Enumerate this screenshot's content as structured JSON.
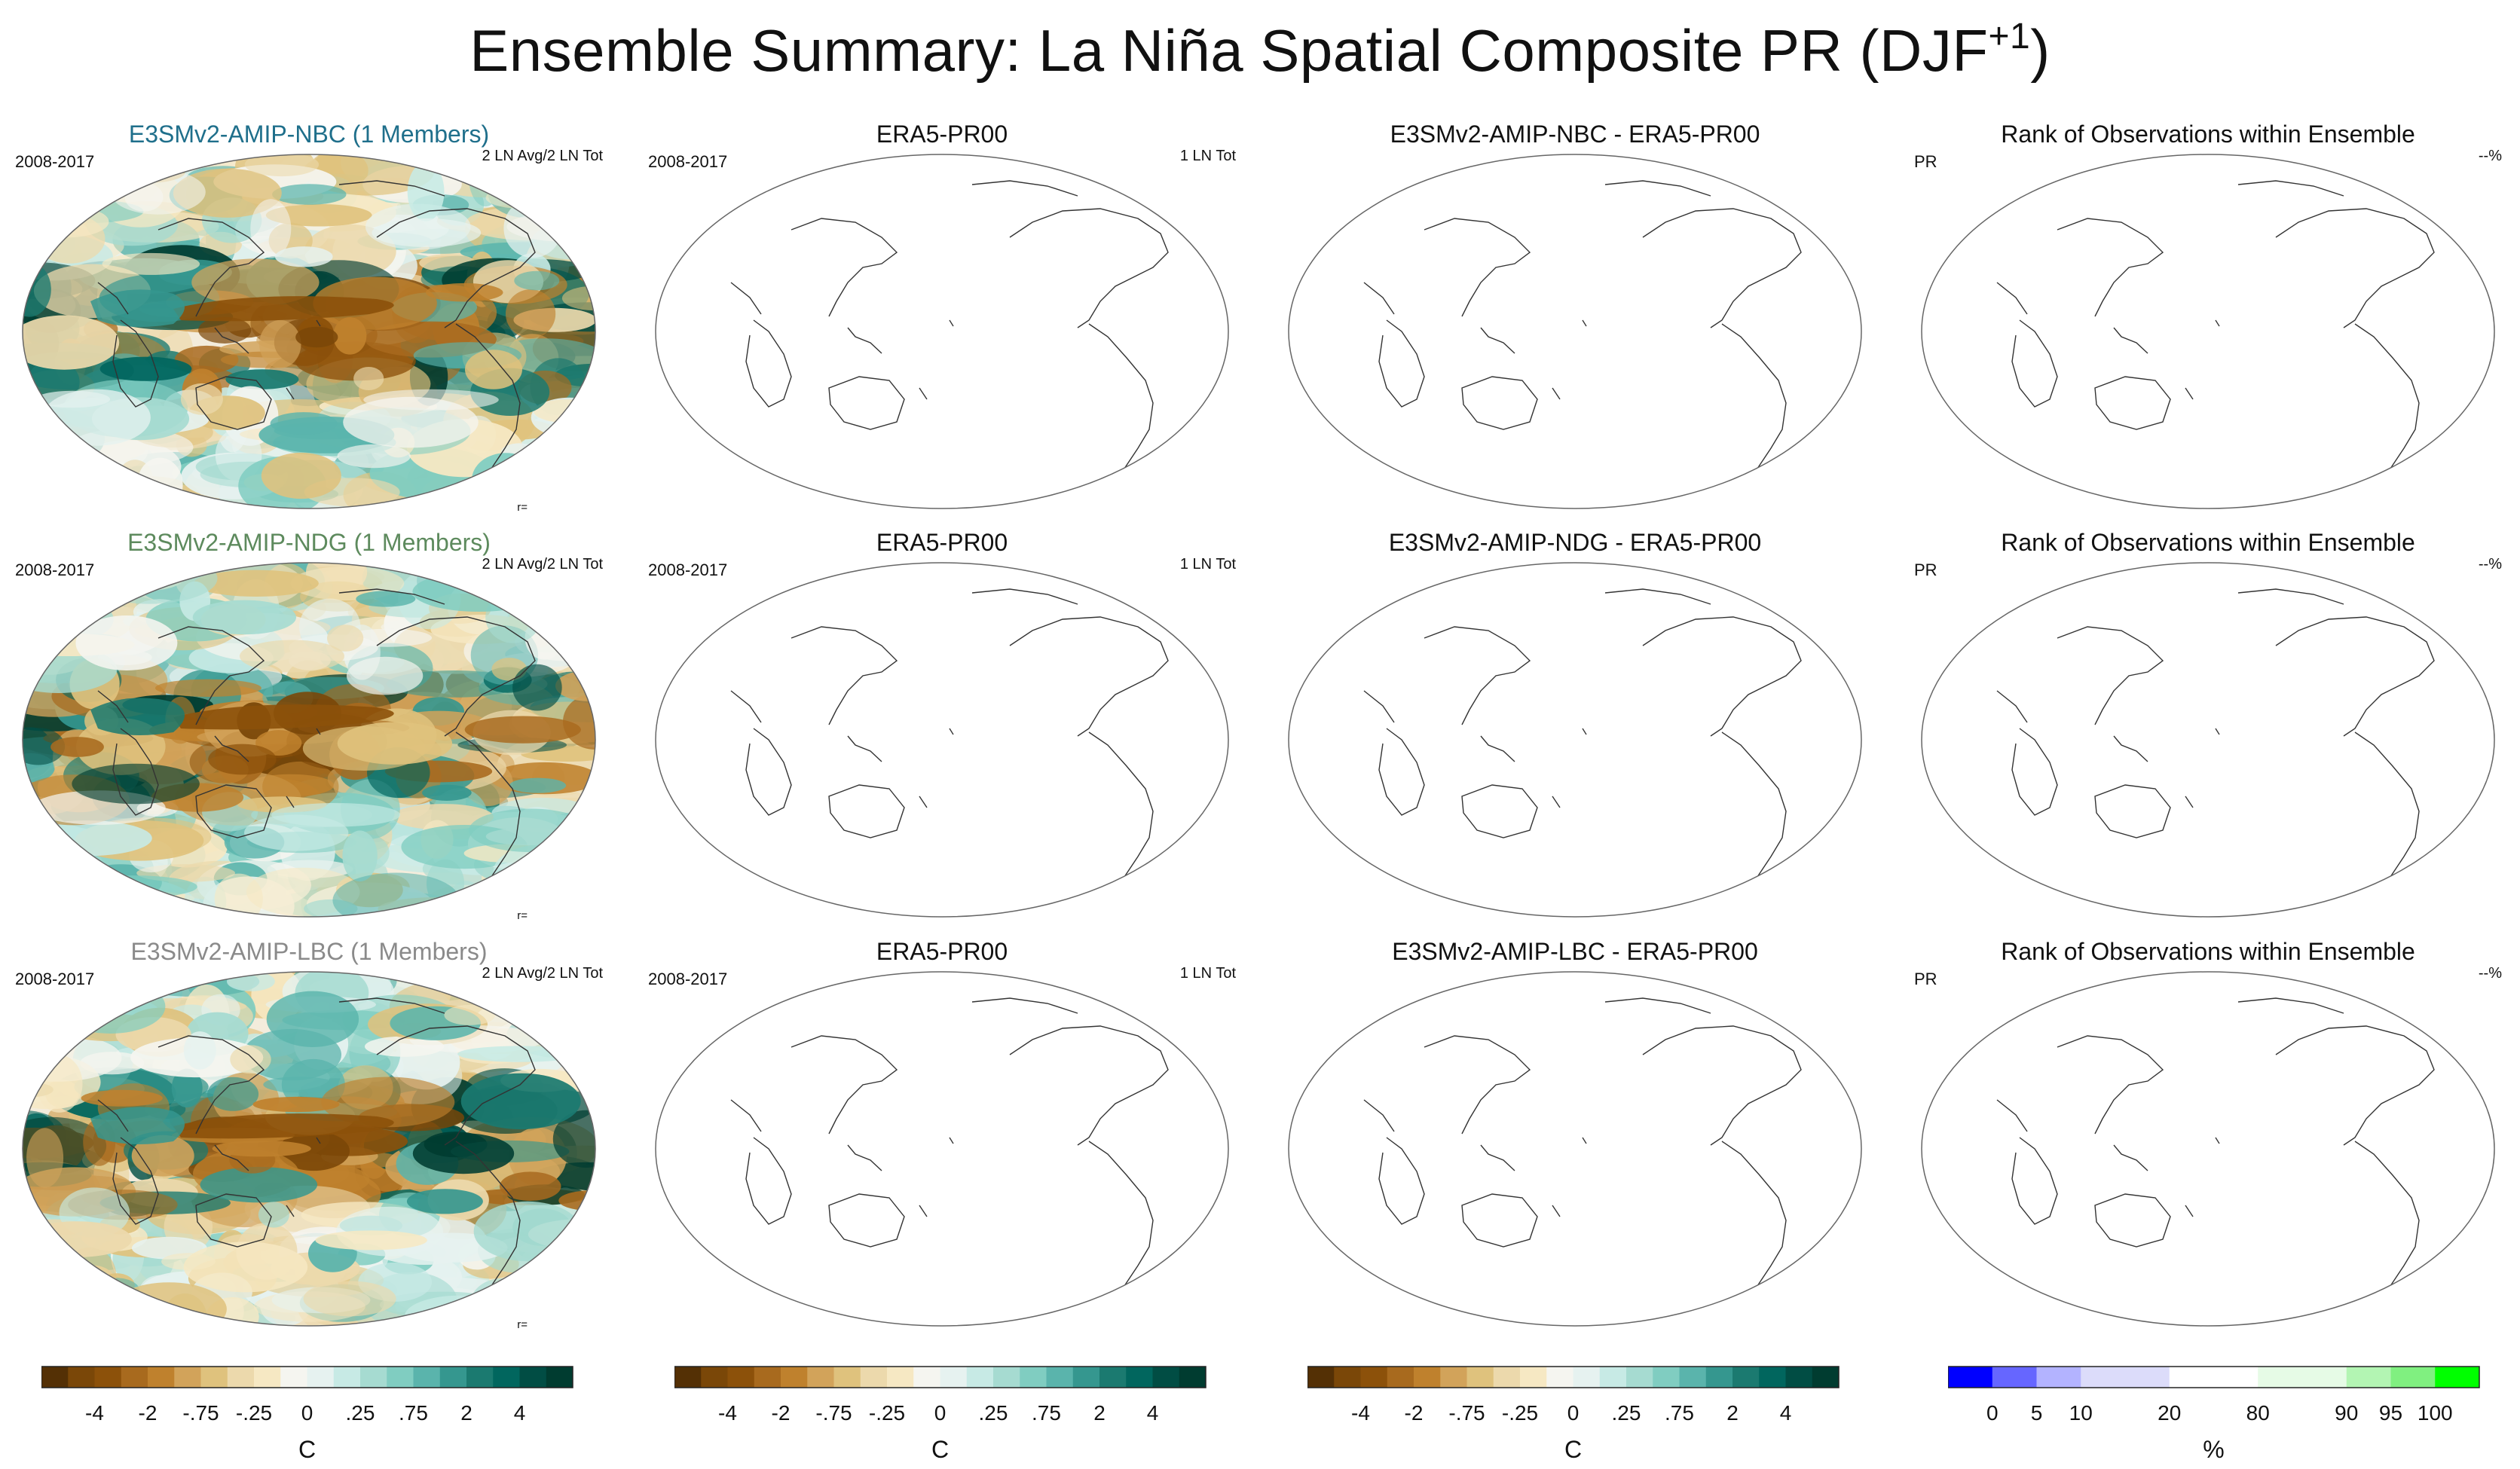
{
  "figure": {
    "title_main": "Ensemble Summary: La Niña Spatial Composite PR (DJF",
    "title_sup": "+1",
    "title_tail": ")"
  },
  "rows": [
    {
      "model": {
        "title": "E3SMv2-AMIP-NBC (1 Members)",
        "title_color": "#1f6f8b",
        "period": "2008-2017",
        "count": "2 LN Avg/2 LN Tot",
        "corr": "r="
      },
      "obs": {
        "title": "ERA5-PR00",
        "period": "2008-2017",
        "count": "1 LN Tot"
      },
      "diff": {
        "title": "E3SMv2-AMIP-NBC - ERA5-PR00"
      },
      "rank": {
        "title": "Rank of Observations within Ensemble",
        "var": "PR",
        "pct": "--%"
      }
    },
    {
      "model": {
        "title": "E3SMv2-AMIP-NDG (1 Members)",
        "title_color": "#5d8a5d",
        "period": "2008-2017",
        "count": "2 LN Avg/2 LN Tot",
        "corr": "r="
      },
      "obs": {
        "title": "ERA5-PR00",
        "period": "2008-2017",
        "count": "1 LN Tot"
      },
      "diff": {
        "title": "E3SMv2-AMIP-NDG - ERA5-PR00"
      },
      "rank": {
        "title": "Rank of Observations within Ensemble",
        "var": "PR",
        "pct": "--%"
      }
    },
    {
      "model": {
        "title": "E3SMv2-AMIP-LBC (1 Members)",
        "title_color": "#8a8a8a",
        "period": "2008-2017",
        "count": "2 LN Avg/2 LN Tot",
        "corr": "r="
      },
      "obs": {
        "title": "ERA5-PR00",
        "period": "2008-2017",
        "count": "1 LN Tot"
      },
      "diff": {
        "title": "E3SMv2-AMIP-LBC - ERA5-PR00"
      },
      "rank": {
        "title": "Rank of Observations within Ensemble",
        "var": "PR",
        "pct": "--%"
      }
    }
  ],
  "colorbars": {
    "brbg": {
      "colors": [
        "#543005",
        "#7a4708",
        "#8c510a",
        "#a86a1e",
        "#bf812d",
        "#d2a35a",
        "#dfc27d",
        "#ecd9ac",
        "#f6e8c3",
        "#f5f5f0",
        "#e6f2f0",
        "#c7eae5",
        "#a6dbd1",
        "#80cdc1",
        "#5ab4ac",
        "#35978f",
        "#1b7a70",
        "#01665e",
        "#014d44",
        "#003c30"
      ],
      "ticks": [
        "-4",
        "-2",
        "-.75",
        "-.25",
        "0",
        ".25",
        ".75",
        "2",
        "4"
      ],
      "label": "C"
    },
    "rank": {
      "colors": [
        "#0000ff",
        "#6666ff",
        "#b3b3ff",
        "#dcdcfa",
        "#dcdcfa",
        "#ffffff",
        "#ffffff",
        "#e6fbe6",
        "#e6fbe6",
        "#b3f5b3",
        "#80f080",
        "#00ff00"
      ],
      "ticks": [
        "0",
        "5",
        "10",
        "20",
        "80",
        "90",
        "95",
        "100"
      ],
      "label": "%"
    }
  }
}
